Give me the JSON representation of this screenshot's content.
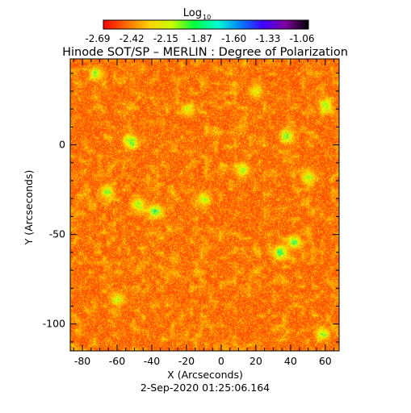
{
  "chart_data": {
    "type": "heatmap",
    "title": "Hinode SOT/SP – MERLIN : Degree of Polarization",
    "xlabel": "X (Arcseconds)",
    "ylabel": "Y (Arcseconds)",
    "xlim": [
      -87,
      68
    ],
    "ylim": [
      -115,
      48
    ],
    "x_ticks": [
      -80,
      -60,
      -40,
      -20,
      0,
      20,
      40,
      60
    ],
    "y_ticks": [
      -100,
      -50,
      0
    ],
    "colorbar": {
      "title_main": "Log",
      "title_sub": "10",
      "range": [
        -2.69,
        -1.06
      ],
      "tick_labels": [
        "-2.69",
        "-2.42",
        "-2.15",
        "-1.87",
        "-1.60",
        "-1.33",
        "-1.06"
      ],
      "colors": [
        "#ff0000",
        "#ff6a00",
        "#ffd000",
        "#c8ff00",
        "#00ff40",
        "#00ffd0",
        "#0080ff",
        "#4000ff",
        "#8000a0",
        "#000000"
      ]
    },
    "image_field": {
      "description_level_mean": 0.14,
      "background_colors": [
        "#ff2a00",
        "#ff5a00",
        "#ff8800",
        "#ffb400",
        "#ffe000",
        "#d8ff00"
      ],
      "active_patches": [
        {
          "x": -52,
          "y": 2,
          "strength": 0.55
        },
        {
          "x": 38,
          "y": 5,
          "strength": 0.5
        },
        {
          "x": -66,
          "y": -26,
          "strength": 0.5
        },
        {
          "x": -38,
          "y": -37,
          "strength": 0.6
        },
        {
          "x": -48,
          "y": -33,
          "strength": 0.45
        },
        {
          "x": 34,
          "y": -60,
          "strength": 0.6
        },
        {
          "x": 42,
          "y": -54,
          "strength": 0.5
        },
        {
          "x": 12,
          "y": -14,
          "strength": 0.45
        },
        {
          "x": -10,
          "y": -30,
          "strength": 0.4
        },
        {
          "x": 50,
          "y": -18,
          "strength": 0.45
        },
        {
          "x": -72,
          "y": 40,
          "strength": 0.4
        },
        {
          "x": 60,
          "y": 22,
          "strength": 0.45
        },
        {
          "x": 58,
          "y": -105,
          "strength": 0.4
        },
        {
          "x": -60,
          "y": -86,
          "strength": 0.35
        },
        {
          "x": 20,
          "y": 30,
          "strength": 0.35
        },
        {
          "x": -20,
          "y": 20,
          "strength": 0.3
        }
      ]
    }
  },
  "timestamp": "2-Sep-2020 01:25:06.164"
}
